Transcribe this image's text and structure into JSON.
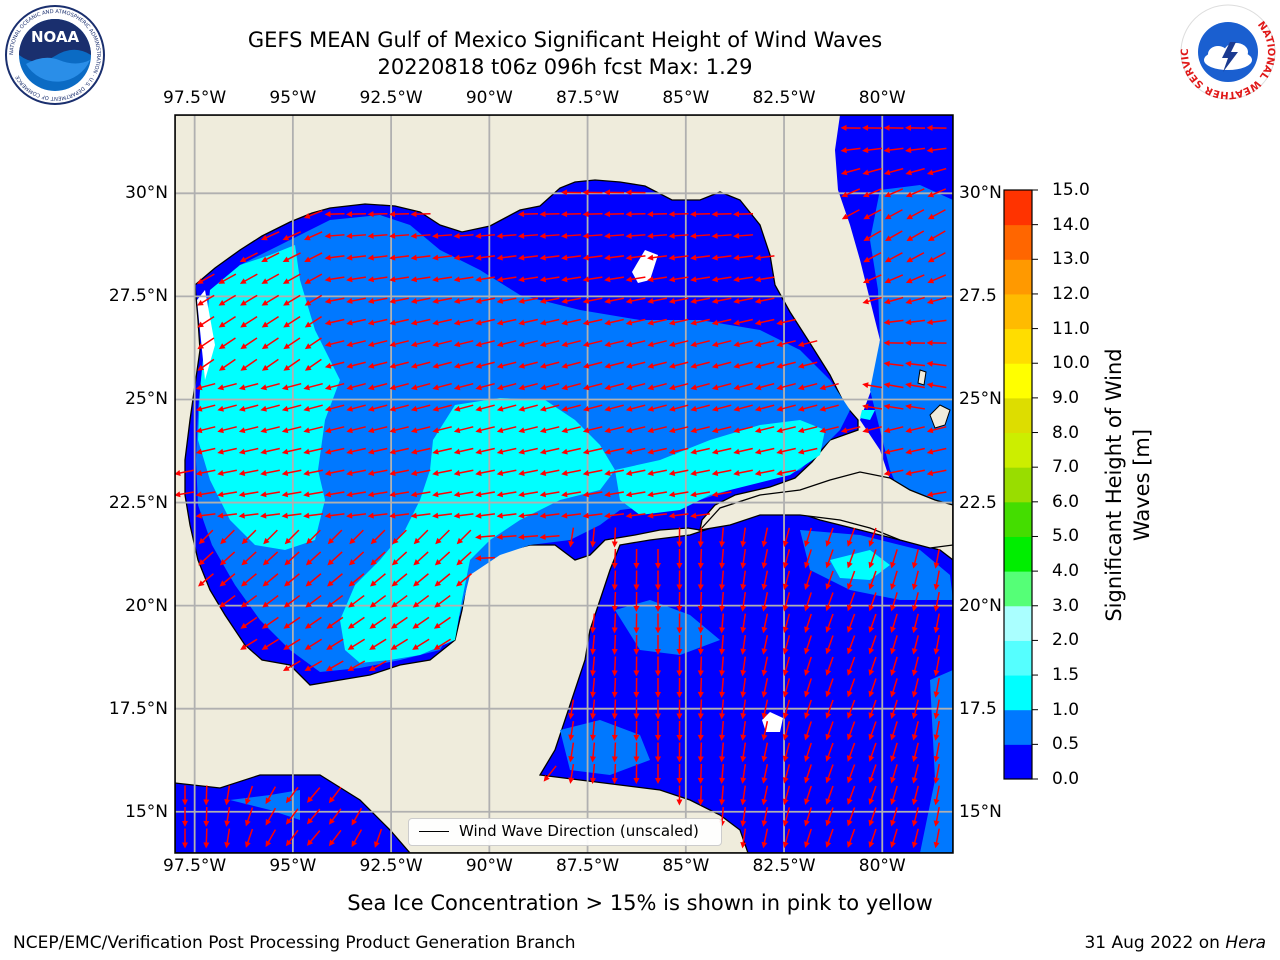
{
  "title": {
    "line1": "GEFS MEAN Gulf of Mexico Significant Height of Wind Waves",
    "line2": "20220818 t06z 096h fcst   Max: 1.29"
  },
  "map": {
    "lon_range": [
      -98,
      -78.2
    ],
    "lat_range": [
      14,
      31.9
    ],
    "lon_ticks": [
      "97.5°W",
      "95°W",
      "92.5°W",
      "90°W",
      "87.5°W",
      "85°W",
      "82.5°W",
      "80°W"
    ],
    "lon_tick_values": [
      -97.5,
      -95,
      -92.5,
      -90,
      -87.5,
      -85,
      -82.5,
      -80
    ],
    "lat_ticks": [
      "30°N",
      "27.5°N",
      "25°N",
      "22.5°N",
      "20°N",
      "17.5°N",
      "15°N"
    ],
    "lat_tick_values": [
      30,
      27.5,
      25,
      22.5,
      20,
      17.5,
      15
    ],
    "right_lat_ticks": [
      "30°N",
      "27.5",
      "25°N",
      "22.5",
      "20°N",
      "17.5",
      "15°N"
    ],
    "land_color": "#efecdc",
    "arrow_color": "#ff0000",
    "grid_color": "#b0b0b0"
  },
  "legend": {
    "label": "Wind Wave Direction (unscaled)"
  },
  "colorbar": {
    "label": "Significant Height of Wind Waves [m]",
    "label_line1": "Significant Height of Wind",
    "label_line2": "Waves [m]",
    "ticks": [
      "15.0",
      "14.0",
      "13.0",
      "12.0",
      "11.0",
      "10.0",
      "9.0",
      "8.0",
      "7.0",
      "6.0",
      "5.0",
      "4.0",
      "3.0",
      "2.0",
      "1.5",
      "1.0",
      "0.5",
      "0.0"
    ],
    "levels": [
      0,
      0.5,
      1.0,
      1.5,
      2.0,
      3.0,
      4.0,
      5.0,
      6.0,
      7.0,
      8.0,
      9.0,
      10.0,
      11.0,
      12.0,
      13.0,
      14.0,
      15.0
    ],
    "colors": [
      "#0000ff",
      "#0078ff",
      "#00ffff",
      "#55ffff",
      "#aaffff",
      "#55ff77",
      "#00ee00",
      "#44dd00",
      "#99dd00",
      "#ccee00",
      "#dddd00",
      "#ffff00",
      "#ffdd00",
      "#ffbb00",
      "#ff9900",
      "#ff6600",
      "#ff3300"
    ]
  },
  "sea_ice_note": "Sea Ice Concentration > 15% is shown in pink to yellow",
  "footer": {
    "left": "NCEP/EMC/Verification Post Processing Product Generation Branch",
    "right_date": "31 Aug 2022 on ",
    "right_host": "Hera"
  },
  "logos": {
    "noaa_text": "NOAA",
    "noaa_ring": "NATIONAL OCEANIC AND ATMOSPHERIC ADMINISTRATION · U.S. DEPARTMENT OF COMMERCE",
    "nws_ring": "NATIONAL WEATHER SERVICE"
  }
}
